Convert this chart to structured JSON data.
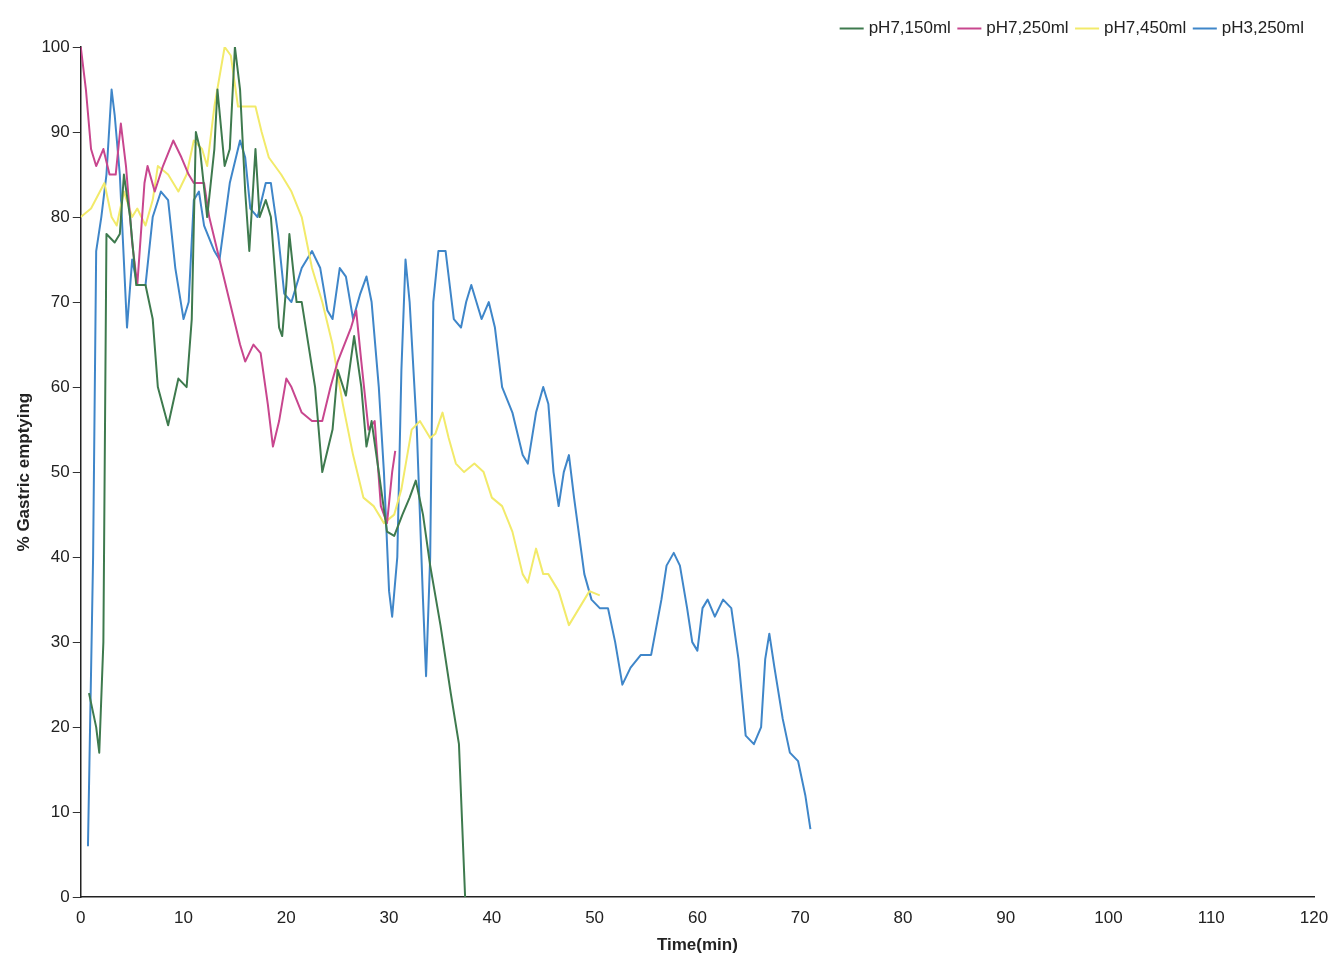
{
  "chart_data": {
    "type": "line",
    "xlabel": "Time(min)",
    "ylabel": "% Gastric emptying",
    "xlim": [
      0,
      120
    ],
    "xticks": [
      0,
      10,
      20,
      30,
      40,
      50,
      60,
      70,
      80,
      90,
      100,
      110,
      120
    ],
    "ylim": [
      0,
      100
    ],
    "yticks": [
      0,
      10,
      20,
      30,
      40,
      50,
      60,
      70,
      80,
      90,
      100
    ],
    "grid": false,
    "legend": "top right",
    "marker": "none",
    "line_style": "solid",
    "series": [
      {
        "name": "pH7,150ml",
        "color": "#3e7a4e",
        "x": [
          0.8,
          1.5,
          1.8,
          2.2,
          2.5,
          3.3,
          3.8,
          4.2,
          4.8,
          5.4,
          6.3,
          7,
          7.5,
          8.5,
          9.5,
          10.3,
          10.8,
          11.2,
          11.6,
          12.3,
          13,
          13.3,
          14,
          14.5,
          15,
          15.5,
          16,
          16.4,
          17,
          17.4,
          18,
          18.5,
          19.3,
          19.6,
          20,
          20.3,
          21,
          21.5,
          22.8,
          23.5,
          24.5,
          25,
          25.8,
          26.6,
          27.3,
          27.8,
          28.3,
          29,
          29.8,
          30.5,
          31.3,
          32,
          32.6,
          33.3,
          34,
          35,
          36,
          36.8,
          37.4
        ],
        "values": [
          24,
          20,
          17,
          30,
          78,
          77,
          78,
          85,
          80,
          72,
          72,
          68,
          60,
          55.5,
          61,
          60,
          68,
          90,
          88,
          80,
          88,
          95,
          86,
          88,
          100,
          95,
          83,
          76,
          88,
          80,
          82,
          80,
          67,
          66,
          72,
          78,
          70,
          70,
          60,
          50,
          55,
          62,
          59,
          66,
          60,
          53,
          56,
          50,
          43,
          42.5,
          45,
          47,
          49,
          45,
          39,
          32,
          24,
          18,
          0
        ]
      },
      {
        "name": "pH7,250ml",
        "color": "#c8468e",
        "x": [
          0,
          0.5,
          1,
          1.5,
          2.2,
          2.8,
          3.4,
          3.9,
          4.4,
          5,
          5.5,
          6.2,
          6.5,
          7.2,
          8,
          9,
          9.8,
          10.5,
          11,
          12,
          12.5,
          13.5,
          14.5,
          15.5,
          16,
          16.8,
          17.5,
          18.2,
          18.7,
          19.3,
          20,
          20.5,
          21.5,
          22.5,
          23.5,
          24.3,
          25,
          26.3,
          26.8,
          27.3,
          28,
          28.6,
          29.2,
          29.8,
          30.3,
          30.6
        ],
        "values": [
          100,
          95,
          88,
          86,
          88,
          85,
          85,
          91,
          86,
          77,
          72,
          84,
          86,
          83,
          86,
          89,
          87,
          85,
          84,
          84,
          80,
          75,
          70,
          65,
          63,
          65,
          64,
          58,
          53,
          56,
          61,
          60,
          57,
          56,
          56,
          60,
          63,
          67,
          69,
          63,
          55,
          56,
          46,
          44,
          50,
          52.5
        ]
      },
      {
        "name": "pH7,450ml",
        "color": "#f2ea6a",
        "x": [
          0,
          1,
          2.3,
          3,
          3.5,
          4.2,
          5,
          5.5,
          6.3,
          7,
          7.5,
          8.5,
          9.5,
          10.3,
          11,
          11.8,
          12.3,
          13,
          14,
          14.6,
          15.3,
          16,
          17,
          17.6,
          18.3,
          19.5,
          20.5,
          21.5,
          22.5,
          23.5,
          24.5,
          25.5,
          26.5,
          27.5,
          28.5,
          29.5,
          30.5,
          31.2,
          32.2,
          33,
          34,
          34.5,
          35.2,
          35.8,
          36.5,
          37.3,
          38.3,
          39.2,
          40,
          41,
          42,
          43,
          43.5,
          44.3,
          45,
          45.5,
          46.5,
          47.5,
          48.5,
          49.5,
          50.5
        ],
        "values": [
          80,
          81,
          84,
          80,
          79,
          83,
          80,
          81,
          79,
          82,
          86,
          85,
          83,
          85,
          89,
          88,
          86,
          93,
          100,
          99,
          93,
          93,
          93,
          90,
          87,
          85,
          83,
          80,
          74,
          70,
          65,
          58,
          52,
          47,
          46,
          44,
          45,
          48,
          55,
          56,
          54,
          54.5,
          57,
          54,
          51,
          50,
          51,
          50,
          47,
          46,
          43,
          38,
          37,
          41,
          38,
          38,
          36,
          32,
          34,
          36,
          35.5
        ]
      },
      {
        "name": "pH3,250ml",
        "color": "#3f86c9",
        "x": [
          0.7,
          1.2,
          1.5,
          2,
          2.5,
          3,
          3.3,
          3.8,
          4.5,
          5,
          5.5,
          6.3,
          7,
          7.8,
          8.5,
          9.2,
          10,
          10.5,
          11,
          11.5,
          12,
          13,
          13.5,
          14.5,
          15.5,
          16,
          16.5,
          17.2,
          18,
          18.5,
          19.2,
          19.8,
          20.5,
          21.5,
          22.5,
          23.3,
          24,
          24.5,
          25.2,
          25.8,
          26.5,
          27.2,
          27.8,
          28.3,
          29,
          29.5,
          30,
          30.3,
          30.8,
          31.2,
          31.6,
          32,
          32.7,
          33.3,
          33.6,
          34,
          34.3,
          34.8,
          35.5,
          36.3,
          37,
          37.5,
          38,
          38.5,
          39,
          39.7,
          40.3,
          41,
          42,
          43,
          43.5,
          44.3,
          45,
          45.5,
          46,
          46.5,
          47,
          47.5,
          48,
          49,
          49.7,
          50.5,
          51.3,
          52,
          52.7,
          53.5,
          54.5,
          55.5,
          56.5,
          57,
          57.7,
          58.3,
          59,
          59.5,
          60,
          60.5,
          61,
          61.7,
          62.5,
          63.3,
          64,
          64.7,
          65.5,
          66.2,
          66.6,
          67,
          67.5,
          68.3,
          69,
          69.8,
          70.5,
          71
        ],
        "values": [
          6,
          40,
          76,
          80,
          85,
          95,
          92,
          85,
          67,
          75,
          72,
          72,
          80,
          83,
          82,
          74,
          68,
          70,
          82,
          83,
          79,
          76,
          75,
          84,
          89,
          87,
          81,
          80,
          84,
          84,
          78,
          71,
          70,
          74,
          76,
          74,
          69,
          68,
          74,
          73,
          68,
          71,
          73,
          70,
          60,
          50,
          36,
          33,
          40,
          62,
          75,
          70,
          55,
          35,
          26,
          40,
          70,
          76,
          76,
          68,
          67,
          70,
          72,
          70,
          68,
          70,
          67,
          60,
          57,
          52,
          51,
          57,
          60,
          58,
          50,
          46,
          50,
          52,
          47,
          38,
          35,
          34,
          34,
          30,
          25,
          27,
          28.5,
          28.5,
          35,
          39,
          40.5,
          39,
          34,
          30,
          29,
          34,
          35,
          33,
          35,
          34,
          28,
          19,
          18,
          20,
          28,
          31,
          27,
          21,
          17,
          16,
          12,
          8
        ]
      }
    ]
  }
}
